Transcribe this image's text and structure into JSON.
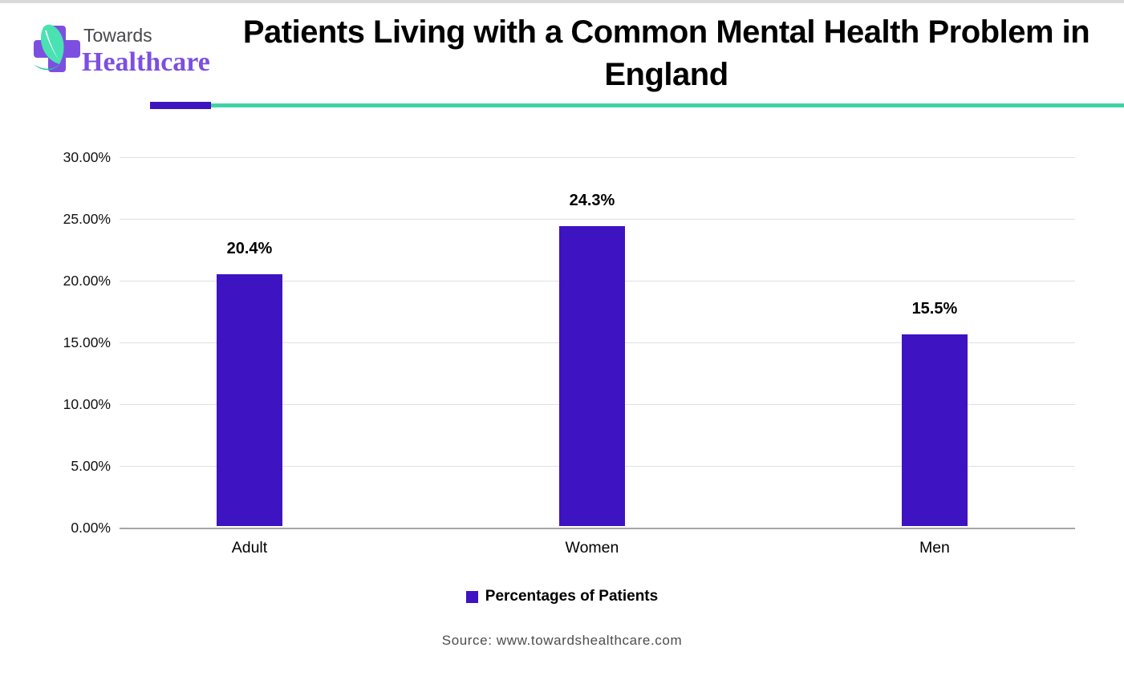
{
  "brand": {
    "name_line1": "Towards",
    "name_line2": "Healthcare"
  },
  "header": {
    "title": "Patients Living with a Common Mental Health Problem in England"
  },
  "chart_data": {
    "type": "bar",
    "title": "Patients Living with a Common Mental Health Problem in England",
    "categories": [
      "Adult",
      "Women",
      "Men"
    ],
    "values": [
      20.4,
      24.3,
      15.5
    ],
    "value_labels": [
      "20.4%",
      "24.3%",
      "15.5%"
    ],
    "series_name": "Percentages of Patients",
    "xlabel": "",
    "ylabel": "",
    "ylim": [
      0,
      30
    ],
    "ytick_step": 5,
    "ytick_labels": [
      "30.00%",
      "25.00%",
      "20.00%",
      "15.00%",
      "10.00%",
      "5.00%",
      "0.00%"
    ],
    "grid": true,
    "legend_position": "bottom",
    "bar_color": "#3D13C2"
  },
  "legend": {
    "label": "Percentages of Patients",
    "swatch_color": "#3D13C2"
  },
  "source": {
    "text": "Source: www.towardshealthcare.com"
  },
  "colors": {
    "bar": "#3D13C2",
    "accent_teal": "#3FD3A4",
    "logo_purple": "#7C4FE0",
    "logo_leaf": "#4AE2B2",
    "logo_leaf_dark": "#27C499",
    "towards_gray": "#47484C",
    "gridline": "#e0e0e0",
    "axis_line": "#a6a6a6",
    "source_text": "#4d4d4d"
  }
}
